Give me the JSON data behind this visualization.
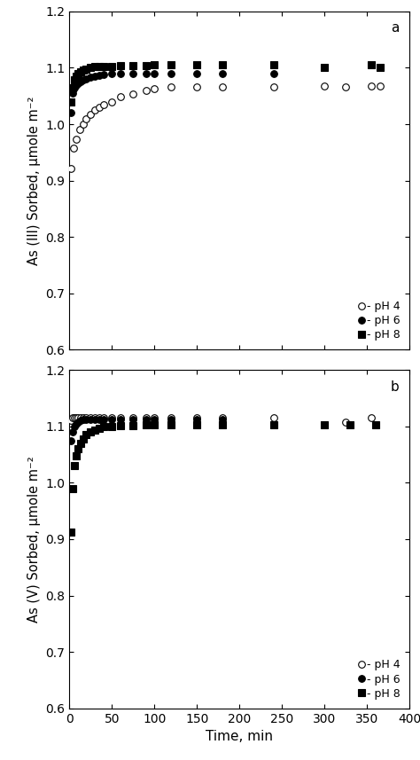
{
  "panel_a": {
    "label": "a",
    "ylabel": "As (III) Sorbed, μmole m⁻²",
    "ylim": [
      0.6,
      1.2
    ],
    "yticks": [
      0.6,
      0.7,
      0.8,
      0.9,
      1.0,
      1.1,
      1.2
    ],
    "ph4": {
      "x": [
        2,
        5,
        8,
        12,
        16,
        20,
        25,
        30,
        35,
        40,
        50,
        60,
        75,
        90,
        100,
        120,
        150,
        180,
        240,
        300,
        325,
        355,
        365
      ],
      "y": [
        0.922,
        0.958,
        0.974,
        0.99,
        1.0,
        1.01,
        1.018,
        1.025,
        1.03,
        1.035,
        1.04,
        1.048,
        1.053,
        1.06,
        1.063,
        1.066,
        1.066,
        1.066,
        1.066,
        1.067,
        1.066,
        1.068,
        1.068
      ]
    },
    "ph6": {
      "x": [
        2,
        4,
        6,
        8,
        10,
        13,
        16,
        20,
        25,
        30,
        35,
        40,
        50,
        60,
        75,
        90,
        100,
        120,
        150,
        180,
        240
      ],
      "y": [
        1.02,
        1.055,
        1.065,
        1.07,
        1.072,
        1.076,
        1.078,
        1.08,
        1.083,
        1.085,
        1.086,
        1.088,
        1.09,
        1.09,
        1.09,
        1.09,
        1.09,
        1.09,
        1.09,
        1.09,
        1.09
      ]
    },
    "ph8": {
      "x": [
        2,
        4,
        6,
        8,
        10,
        13,
        16,
        20,
        25,
        30,
        35,
        40,
        50,
        60,
        75,
        90,
        100,
        120,
        150,
        180,
        240,
        300,
        355,
        365
      ],
      "y": [
        1.04,
        1.065,
        1.078,
        1.085,
        1.09,
        1.093,
        1.096,
        1.098,
        1.1,
        1.102,
        1.103,
        1.103,
        1.103,
        1.104,
        1.104,
        1.104,
        1.105,
        1.105,
        1.105,
        1.105,
        1.105,
        1.101,
        1.105,
        1.1
      ]
    }
  },
  "panel_b": {
    "label": "b",
    "ylabel": "As (V) Sorbed, μmole m⁻²",
    "ylim": [
      0.6,
      1.2
    ],
    "yticks": [
      0.6,
      0.7,
      0.8,
      0.9,
      1.0,
      1.1,
      1.2
    ],
    "ph4": {
      "x": [
        2,
        4,
        6,
        8,
        10,
        13,
        16,
        20,
        25,
        30,
        35,
        40,
        50,
        60,
        75,
        90,
        100,
        120,
        150,
        180,
        240,
        325,
        355
      ],
      "y": [
        1.11,
        1.115,
        1.115,
        1.115,
        1.115,
        1.115,
        1.115,
        1.115,
        1.115,
        1.116,
        1.115,
        1.115,
        1.115,
        1.115,
        1.115,
        1.115,
        1.115,
        1.115,
        1.115,
        1.115,
        1.115,
        1.107,
        1.115
      ]
    },
    "ph6": {
      "x": [
        2,
        4,
        6,
        8,
        10,
        13,
        16,
        20,
        25,
        30,
        35,
        40,
        50,
        60,
        75,
        90,
        100,
        120,
        150,
        180
      ],
      "y": [
        1.075,
        1.09,
        1.1,
        1.105,
        1.108,
        1.11,
        1.112,
        1.112,
        1.112,
        1.113,
        1.113,
        1.113,
        1.113,
        1.113,
        1.113,
        1.113,
        1.113,
        1.113,
        1.113,
        1.113
      ]
    },
    "ph8": {
      "x": [
        2,
        4,
        6,
        8,
        10,
        13,
        16,
        20,
        25,
        30,
        35,
        40,
        50,
        60,
        75,
        90,
        100,
        120,
        150,
        180,
        240,
        300,
        330,
        360
      ],
      "y": [
        0.912,
        0.99,
        1.03,
        1.048,
        1.06,
        1.07,
        1.078,
        1.085,
        1.09,
        1.093,
        1.096,
        1.099,
        1.1,
        1.102,
        1.102,
        1.103,
        1.103,
        1.103,
        1.103,
        1.103,
        1.103,
        1.103,
        1.103,
        1.103
      ]
    }
  },
  "xlim": [
    0,
    400
  ],
  "xticks": [
    0,
    50,
    100,
    150,
    200,
    250,
    300,
    350,
    400
  ],
  "xlabel": "Time, min",
  "bg_color": "#ffffff",
  "marker_size": 5.5
}
